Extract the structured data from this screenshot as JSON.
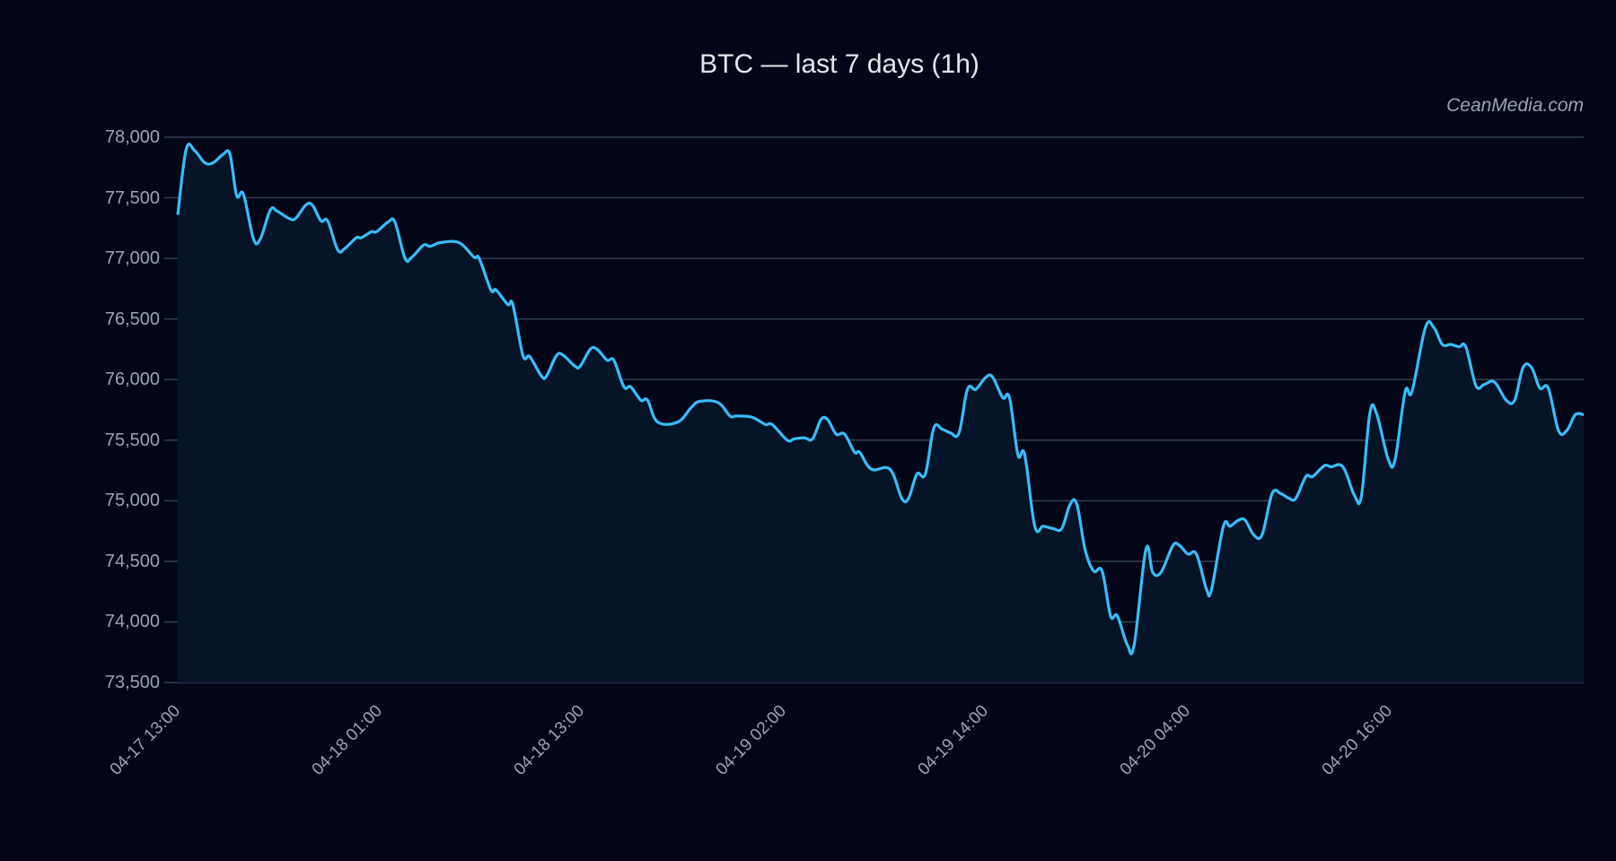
{
  "header": {
    "title": "BTC — last 7 days (1h)",
    "watermark": "CeanMedia.com"
  },
  "colors": {
    "background": "#020617",
    "plot_fill": "#061427",
    "line": "#38bdf8",
    "grid": "#334155",
    "tick_text": "#9ca3af",
    "title_text": "#e5e7eb"
  },
  "chart_data": {
    "type": "line",
    "title": "BTC — last 7 days (1h)",
    "xlabel": "",
    "ylabel": "",
    "ylim": [
      73500,
      78000
    ],
    "grid": true,
    "legend": "none",
    "yticks": [
      "78,000",
      "77,500",
      "77,000",
      "76,500",
      "76,000",
      "75,500",
      "75,000",
      "74,500",
      "74,000",
      "73,500"
    ],
    "ytick_values": [
      78000,
      77500,
      77000,
      76500,
      76000,
      75500,
      75000,
      74500,
      74000,
      73500
    ],
    "xticks": [
      "04-17 13:00",
      "04-18 01:00",
      "04-18 13:00",
      "04-19 02:00",
      "04-19 14:00",
      "04-20 04:00",
      "04-20 16:00"
    ],
    "xtick_positions_hours": [
      0,
      12,
      24,
      36,
      48,
      60,
      72
    ],
    "x_range_hours": [
      0,
      83.5
    ],
    "series": [
      {
        "name": "BTC",
        "points": [
          [
            0.0,
            77360
          ],
          [
            0.5,
            77900
          ],
          [
            1.0,
            77890
          ],
          [
            1.6,
            77790
          ],
          [
            2.1,
            77790
          ],
          [
            2.7,
            77860
          ],
          [
            3.1,
            77860
          ],
          [
            3.5,
            77520
          ],
          [
            3.9,
            77530
          ],
          [
            4.5,
            77160
          ],
          [
            4.9,
            77160
          ],
          [
            5.5,
            77400
          ],
          [
            5.9,
            77390
          ],
          [
            6.6,
            77330
          ],
          [
            7.0,
            77330
          ],
          [
            7.6,
            77440
          ],
          [
            8.0,
            77440
          ],
          [
            8.5,
            77310
          ],
          [
            8.9,
            77310
          ],
          [
            9.5,
            77070
          ],
          [
            9.9,
            77080
          ],
          [
            10.6,
            77170
          ],
          [
            10.9,
            77170
          ],
          [
            11.5,
            77220
          ],
          [
            11.8,
            77220
          ],
          [
            12.5,
            77300
          ],
          [
            12.9,
            77300
          ],
          [
            13.5,
            77000
          ],
          [
            13.9,
            77010
          ],
          [
            14.6,
            77110
          ],
          [
            15.0,
            77100
          ],
          [
            15.6,
            77130
          ],
          [
            16.7,
            77130
          ],
          [
            17.6,
            77010
          ],
          [
            17.9,
            77000
          ],
          [
            18.6,
            76740
          ],
          [
            18.9,
            76740
          ],
          [
            19.6,
            76620
          ],
          [
            19.9,
            76620
          ],
          [
            20.5,
            76200
          ],
          [
            20.9,
            76190
          ],
          [
            21.6,
            76030
          ],
          [
            21.9,
            76030
          ],
          [
            22.5,
            76200
          ],
          [
            22.9,
            76200
          ],
          [
            23.6,
            76110
          ],
          [
            23.9,
            76110
          ],
          [
            24.5,
            76250
          ],
          [
            24.9,
            76250
          ],
          [
            25.5,
            76160
          ],
          [
            25.9,
            76160
          ],
          [
            26.5,
            75940
          ],
          [
            26.9,
            75940
          ],
          [
            27.5,
            75830
          ],
          [
            27.9,
            75830
          ],
          [
            28.5,
            75650
          ],
          [
            29.7,
            75650
          ],
          [
            30.5,
            75770
          ],
          [
            31.0,
            75820
          ],
          [
            32.1,
            75810
          ],
          [
            32.8,
            75700
          ],
          [
            33.2,
            75700
          ],
          [
            34.1,
            75690
          ],
          [
            34.9,
            75630
          ],
          [
            35.3,
            75630
          ],
          [
            36.2,
            75500
          ],
          [
            36.6,
            75510
          ],
          [
            37.2,
            75520
          ],
          [
            37.7,
            75510
          ],
          [
            38.2,
            75670
          ],
          [
            38.6,
            75670
          ],
          [
            39.1,
            75550
          ],
          [
            39.6,
            75550
          ],
          [
            40.2,
            75400
          ],
          [
            40.5,
            75400
          ],
          [
            41.2,
            75260
          ],
          [
            42.3,
            75260
          ],
          [
            43.0,
            75020
          ],
          [
            43.4,
            75020
          ],
          [
            43.9,
            75220
          ],
          [
            44.4,
            75220
          ],
          [
            44.9,
            75600
          ],
          [
            45.4,
            75590
          ],
          [
            45.9,
            75560
          ],
          [
            46.4,
            75560
          ],
          [
            46.9,
            75920
          ],
          [
            47.4,
            75920
          ],
          [
            48.0,
            76020
          ],
          [
            48.4,
            76020
          ],
          [
            49.0,
            75850
          ],
          [
            49.4,
            75850
          ],
          [
            49.9,
            75380
          ],
          [
            50.3,
            75380
          ],
          [
            50.9,
            74790
          ],
          [
            51.4,
            74790
          ],
          [
            52.0,
            74770
          ],
          [
            52.5,
            74770
          ],
          [
            53.0,
            74970
          ],
          [
            53.4,
            74970
          ],
          [
            53.9,
            74590
          ],
          [
            54.4,
            74420
          ],
          [
            54.9,
            74420
          ],
          [
            55.4,
            74050
          ],
          [
            55.8,
            74050
          ],
          [
            56.4,
            73810
          ],
          [
            56.8,
            73810
          ],
          [
            57.5,
            74600
          ],
          [
            57.9,
            74410
          ],
          [
            58.4,
            74410
          ],
          [
            59.1,
            74630
          ],
          [
            59.5,
            74630
          ],
          [
            60.0,
            74560
          ],
          [
            60.5,
            74560
          ],
          [
            61.1,
            74270
          ],
          [
            61.4,
            74270
          ],
          [
            62.1,
            74790
          ],
          [
            62.5,
            74790
          ],
          [
            63.0,
            74840
          ],
          [
            63.4,
            74840
          ],
          [
            63.9,
            74720
          ],
          [
            64.4,
            74720
          ],
          [
            65.0,
            75060
          ],
          [
            65.5,
            75060
          ],
          [
            66.0,
            75020
          ],
          [
            66.4,
            75020
          ],
          [
            67.0,
            75200
          ],
          [
            67.4,
            75200
          ],
          [
            68.1,
            75290
          ],
          [
            68.5,
            75280
          ],
          [
            69.2,
            75280
          ],
          [
            69.9,
            75040
          ],
          [
            70.3,
            75040
          ],
          [
            70.8,
            75720
          ],
          [
            71.2,
            75720
          ],
          [
            71.9,
            75340
          ],
          [
            72.3,
            75340
          ],
          [
            72.9,
            75900
          ],
          [
            73.3,
            75900
          ],
          [
            74.1,
            76430
          ],
          [
            74.6,
            76430
          ],
          [
            75.1,
            76290
          ],
          [
            75.6,
            76290
          ],
          [
            76.1,
            76270
          ],
          [
            76.5,
            76270
          ],
          [
            77.1,
            75950
          ],
          [
            77.6,
            75960
          ],
          [
            78.2,
            75980
          ],
          [
            78.9,
            75830
          ],
          [
            79.4,
            75830
          ],
          [
            79.9,
            76100
          ],
          [
            80.4,
            76100
          ],
          [
            80.9,
            75930
          ],
          [
            81.4,
            75930
          ],
          [
            82.0,
            75580
          ],
          [
            82.5,
            75580
          ],
          [
            83.0,
            75710
          ],
          [
            83.5,
            75710
          ]
        ]
      }
    ]
  }
}
